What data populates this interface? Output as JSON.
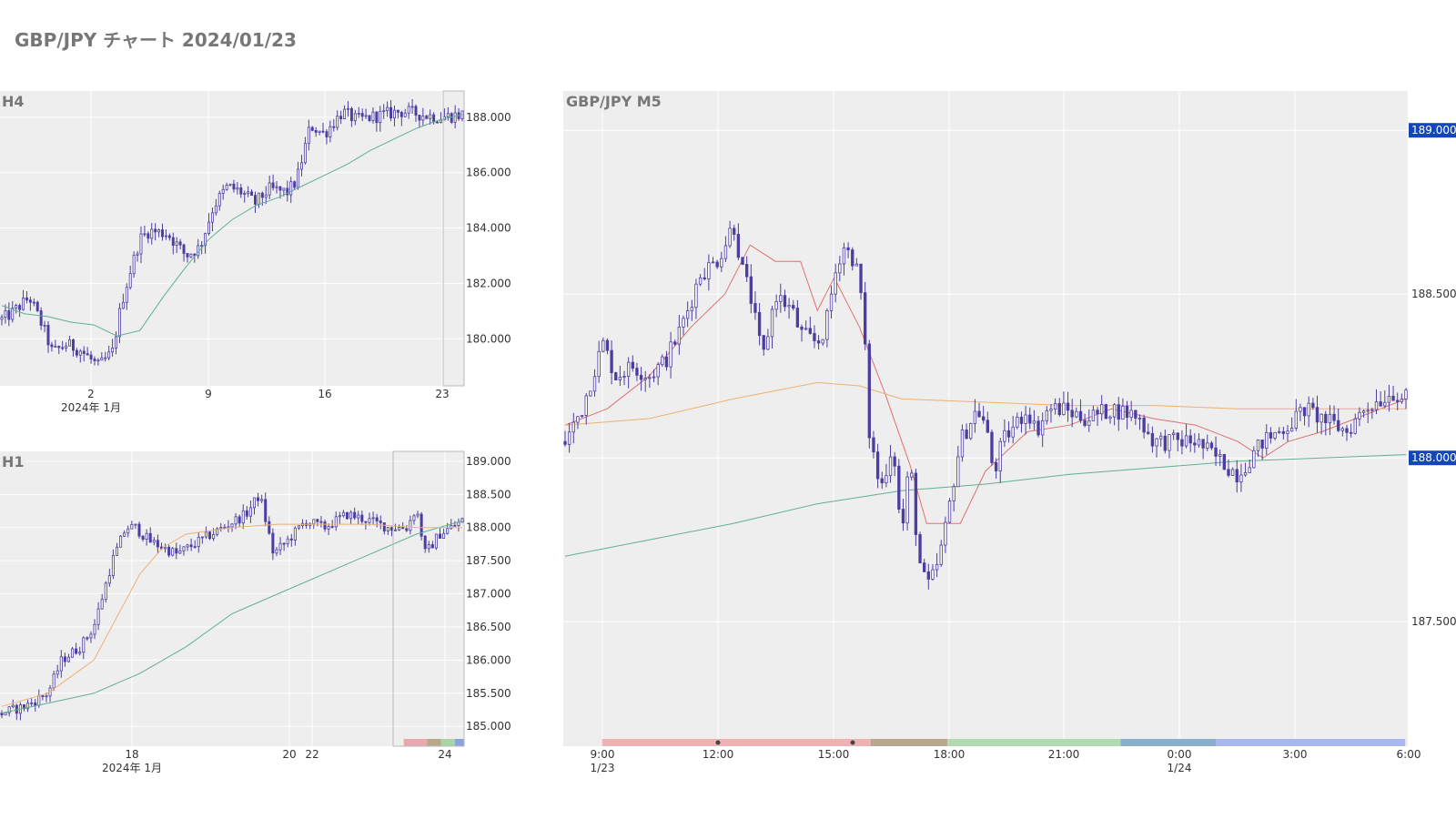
{
  "page": {
    "title": "GBP/JPY チャート 2024/01/23"
  },
  "colors": {
    "candle": "#4b3ea0",
    "plot_bg": "#eeeeee",
    "grid": "#ffffff",
    "price_label_bg": "#1546b8",
    "ma_red": "#e07070",
    "ma_orange": "#f0b070",
    "ma_green": "#5fb090"
  },
  "chart_data": [
    {
      "id": "h4",
      "type": "candlestick",
      "title": "H4",
      "grid": true,
      "ylim": [
        178300,
        188950
      ],
      "yticks": [
        {
          "value": 180000,
          "label": "180.000"
        },
        {
          "value": 182000,
          "label": "182.000"
        },
        {
          "value": 184000,
          "label": "184.000"
        },
        {
          "value": 186000,
          "label": "186.000"
        },
        {
          "value": 188000,
          "label": "188.000"
        }
      ],
      "xticks": [
        {
          "label": "2",
          "sub": "2024年 1月"
        },
        {
          "label": "9",
          "sub": ""
        },
        {
          "label": "16",
          "sub": ""
        },
        {
          "label": "23",
          "sub": ""
        }
      ],
      "path_x": [
        0,
        0.02,
        0.06,
        0.09,
        0.11,
        0.14,
        0.17,
        0.21,
        0.24,
        0.26,
        0.28,
        0.3,
        0.32,
        0.36,
        0.4,
        0.43,
        0.46,
        0.49,
        0.52,
        0.55,
        0.58,
        0.62,
        0.64,
        0.67,
        0.7,
        0.74,
        0.77,
        0.8,
        0.83,
        0.86,
        0.88,
        0.91,
        0.95,
        1.0
      ],
      "path_y": [
        180700,
        180900,
        181500,
        180400,
        179500,
        179800,
        179600,
        179000,
        179500,
        181300,
        182500,
        183600,
        183900,
        183800,
        183000,
        183300,
        184800,
        185500,
        185300,
        184900,
        185400,
        185300,
        185700,
        187700,
        187400,
        188200,
        187900,
        188000,
        188100,
        188200,
        188200,
        188100,
        188000,
        188100
      ],
      "ma": {
        "name": "",
        "color": "#5fb090",
        "x": [
          0,
          0.05,
          0.1,
          0.15,
          0.2,
          0.25,
          0.3,
          0.35,
          0.4,
          0.45,
          0.5,
          0.55,
          0.6,
          0.65,
          0.7,
          0.75,
          0.8,
          0.85,
          0.9,
          0.95,
          1.0
        ],
        "y": [
          181200,
          180900,
          180800,
          180600,
          180500,
          180100,
          180300,
          181500,
          182600,
          183600,
          184300,
          184800,
          185100,
          185500,
          185900,
          186300,
          186800,
          187200,
          187600,
          187900,
          188100
        ]
      }
    },
    {
      "id": "h1",
      "type": "candlestick",
      "title": "H1",
      "grid": true,
      "ylim": [
        184700,
        189150
      ],
      "yticks": [
        {
          "value": 185000,
          "label": "185.000"
        },
        {
          "value": 185500,
          "label": "185.500"
        },
        {
          "value": 186000,
          "label": "186.000"
        },
        {
          "value": 186500,
          "label": "186.500"
        },
        {
          "value": 187000,
          "label": "187.000"
        },
        {
          "value": 187500,
          "label": "187.500"
        },
        {
          "value": 188000,
          "label": "188.000"
        },
        {
          "value": 188500,
          "label": "188.500"
        },
        {
          "value": 189000,
          "label": "189.000"
        }
      ],
      "xticks": [
        {
          "label": "18",
          "sub": "2024年 1月"
        },
        {
          "label": "20",
          "sub": ""
        },
        {
          "label": "22",
          "sub": ""
        },
        {
          "label": "24",
          "sub": ""
        }
      ],
      "path_x": [
        0,
        0.05,
        0.1,
        0.13,
        0.17,
        0.2,
        0.22,
        0.24,
        0.27,
        0.29,
        0.32,
        0.38,
        0.43,
        0.48,
        0.53,
        0.56,
        0.59,
        0.62,
        0.66,
        0.7,
        0.75,
        0.8,
        0.84,
        0.88,
        0.9,
        0.92,
        0.95,
        1.0
      ],
      "path_y": [
        185200,
        185300,
        185500,
        186000,
        186200,
        186500,
        187000,
        187500,
        188000,
        188000,
        187800,
        187600,
        187800,
        188000,
        188200,
        188500,
        187600,
        187800,
        188100,
        188000,
        188200,
        188100,
        188000,
        188000,
        188300,
        187600,
        187900,
        188100
      ],
      "ma": {
        "name": "",
        "color": "#5fb090",
        "x": [
          0,
          0.1,
          0.2,
          0.3,
          0.4,
          0.5,
          0.6,
          0.7,
          0.8,
          0.9,
          1.0
        ],
        "y": [
          185200,
          185350,
          185500,
          185800,
          186200,
          186700,
          187000,
          187300,
          187600,
          187900,
          188100
        ]
      },
      "ma2": {
        "name": "",
        "color": "#f0b070",
        "x": [
          0,
          0.1,
          0.2,
          0.3,
          0.35,
          0.4,
          0.5,
          0.6,
          0.7,
          0.8,
          0.9,
          1.0
        ],
        "y": [
          185300,
          185500,
          186000,
          187300,
          187700,
          187900,
          188000,
          188050,
          188050,
          188050,
          188000,
          188000
        ]
      },
      "sessions": [
        {
          "color": "#e8a0a8",
          "from": 0.87,
          "to": 0.92
        },
        {
          "color": "#b0a080",
          "from": 0.92,
          "to": 0.95
        },
        {
          "color": "#a0d0a0",
          "from": 0.95,
          "to": 0.98
        },
        {
          "color": "#8099d8",
          "from": 0.98,
          "to": 1.0
        }
      ]
    },
    {
      "id": "m5",
      "type": "candlestick",
      "title": "GBP/JPY M5",
      "grid": true,
      "ylim": [
        187120,
        189120
      ],
      "yticks": [
        {
          "value": 187500,
          "label": "187.500"
        },
        {
          "value": 188500,
          "label": "188.500"
        }
      ],
      "price_labels": [
        {
          "value": 189000,
          "label": "189.000"
        },
        {
          "value": 188000,
          "label": "188.000"
        }
      ],
      "xticks": [
        {
          "label": "9:00",
          "sub": "1/23"
        },
        {
          "label": "12:00",
          "sub": ""
        },
        {
          "label": "15:00",
          "sub": ""
        },
        {
          "label": "18:00",
          "sub": ""
        },
        {
          "label": "21:00",
          "sub": ""
        },
        {
          "label": "0:00",
          "sub": "1/24"
        },
        {
          "label": "3:00",
          "sub": ""
        },
        {
          "label": "6:00",
          "sub": ""
        }
      ],
      "path_x": [
        0,
        0.02,
        0.045,
        0.06,
        0.08,
        0.1,
        0.12,
        0.135,
        0.15,
        0.16,
        0.18,
        0.19,
        0.2,
        0.21,
        0.22,
        0.235,
        0.25,
        0.27,
        0.28,
        0.3,
        0.31,
        0.32,
        0.33,
        0.345,
        0.355,
        0.36,
        0.375,
        0.39,
        0.4,
        0.41,
        0.42,
        0.43,
        0.44,
        0.45,
        0.46,
        0.47,
        0.49,
        0.5,
        0.51,
        0.52,
        0.535,
        0.55,
        0.56,
        0.575,
        0.59,
        0.62,
        0.65,
        0.68,
        0.7,
        0.72,
        0.75,
        0.8,
        0.83,
        0.86,
        0.88,
        0.9,
        0.93,
        0.95,
        0.97,
        0.985,
        1.0
      ],
      "path_y": [
        188050,
        188150,
        188350,
        188250,
        188280,
        188250,
        188300,
        188380,
        188480,
        188560,
        188600,
        188650,
        188720,
        188580,
        188500,
        188300,
        188500,
        188450,
        188380,
        188350,
        188400,
        188550,
        188650,
        188600,
        188450,
        188100,
        187900,
        188050,
        187750,
        188000,
        187700,
        187600,
        187650,
        187750,
        187900,
        188050,
        188150,
        188100,
        187950,
        188050,
        188100,
        188150,
        188080,
        188150,
        188150,
        188120,
        188150,
        188130,
        188050,
        188050,
        188050,
        187950,
        188050,
        188100,
        188150,
        188120,
        188080,
        188150,
        188180,
        188200,
        188180
      ],
      "ma": {
        "name": "",
        "color": "#e07070",
        "x": [
          0,
          0.05,
          0.1,
          0.15,
          0.19,
          0.22,
          0.25,
          0.28,
          0.3,
          0.32,
          0.35,
          0.38,
          0.41,
          0.43,
          0.45,
          0.47,
          0.5,
          0.55,
          0.6,
          0.65,
          0.7,
          0.75,
          0.8,
          0.83,
          0.86,
          0.9,
          0.95,
          1.0
        ],
        "y": [
          188100,
          188150,
          188250,
          188400,
          188500,
          188650,
          188600,
          188600,
          188450,
          188550,
          188400,
          188200,
          187980,
          187800,
          187800,
          187800,
          187960,
          188080,
          188100,
          188150,
          188120,
          188100,
          188050,
          188000,
          188050,
          188080,
          188130,
          188180
        ]
      },
      "ma2": {
        "name": "",
        "color": "#f0b070",
        "x": [
          0,
          0.1,
          0.2,
          0.3,
          0.35,
          0.4,
          0.5,
          0.6,
          0.7,
          0.8,
          0.9,
          1.0
        ],
        "y": [
          188100,
          188120,
          188180,
          188230,
          188220,
          188180,
          188170,
          188160,
          188160,
          188150,
          188150,
          188150
        ]
      },
      "ma3": {
        "name": "",
        "color": "#5fb090",
        "x": [
          0,
          0.1,
          0.2,
          0.3,
          0.4,
          0.5,
          0.6,
          0.7,
          0.8,
          0.9,
          1.0
        ],
        "y": [
          187700,
          187750,
          187800,
          187860,
          187900,
          187920,
          187950,
          187970,
          187990,
          188000,
          188010
        ]
      },
      "sessions": [
        {
          "color": "#eeaaaa",
          "from": 0.046,
          "to": 0.364
        },
        {
          "color": "#b0a080",
          "from": 0.364,
          "to": 0.455
        },
        {
          "color": "#a8d8a8",
          "from": 0.455,
          "to": 0.66
        },
        {
          "color": "#7ca8c8",
          "from": 0.66,
          "to": 0.773
        },
        {
          "color": "#a0b0ee",
          "from": 0.773,
          "to": 0.997
        }
      ]
    }
  ]
}
